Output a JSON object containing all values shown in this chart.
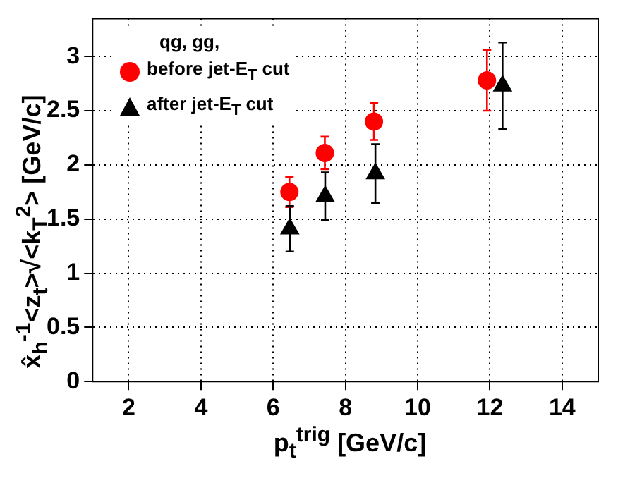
{
  "chart_data": {
    "type": "scatter",
    "xlabel": "p$_{t}$$^{trig}$ [GeV/c]",
    "ylabel": "x̂$_{h}$$^{-1}$<z$_{t}$>√<k$_{T}$$^{2}$> [GeV/c]",
    "legend_title": "qg, gg,",
    "legend": "top left",
    "grid": true,
    "xlim": [
      1,
      15
    ],
    "xticks": [
      2,
      4,
      6,
      8,
      10,
      12,
      14
    ],
    "ylim": [
      0,
      3.35
    ],
    "yticks": [
      0,
      0.5,
      1,
      1.5,
      2,
      2.5,
      3
    ],
    "series": [
      {
        "name": "before  jet-E$_{T}$ cut",
        "color": "#ff0000",
        "marker": "circle",
        "x": [
          6.45,
          7.43,
          8.79,
          11.92
        ],
        "values": [
          1.75,
          2.11,
          2.4,
          2.78
        ],
        "errors": [
          0.14,
          0.15,
          0.17,
          0.28
        ]
      },
      {
        "name": "after  jet-E$_{T}$ cut",
        "color": "#000000",
        "marker": "triangle",
        "x": [
          6.46,
          7.44,
          8.83,
          12.35
        ],
        "values": [
          1.41,
          1.71,
          1.92,
          2.73
        ],
        "errors": [
          0.21,
          0.22,
          0.27,
          0.4
        ]
      }
    ]
  }
}
